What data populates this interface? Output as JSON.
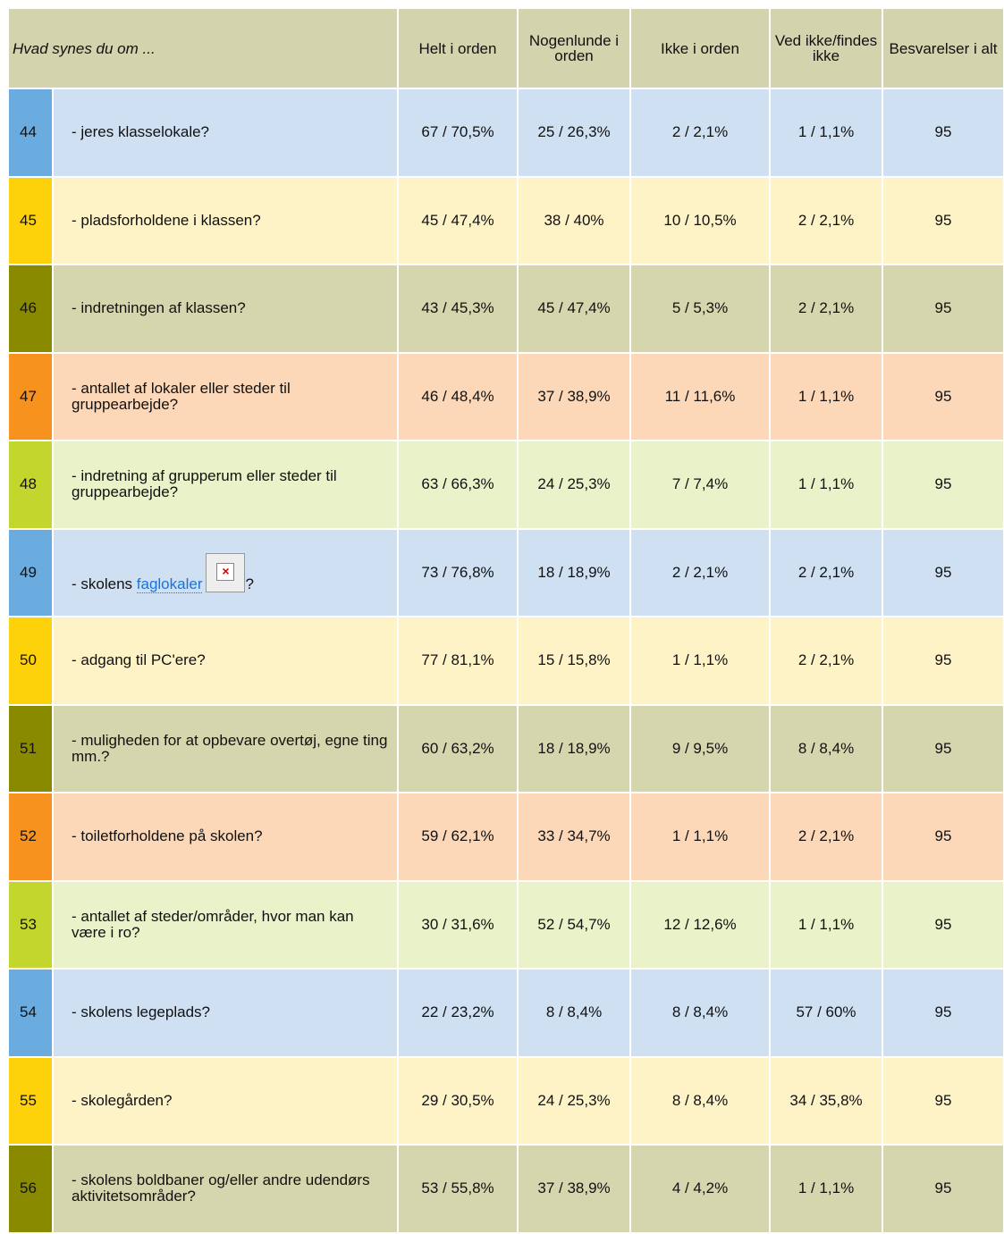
{
  "header": {
    "question": "Hvad synes du om ...",
    "columns": [
      "Helt i orden",
      "Nogenlunde i orden",
      "Ikke i orden",
      "Ved ikke/findes ikke",
      "Besvarelser i alt"
    ]
  },
  "rows": [
    {
      "number": 44,
      "question": "- jeres klasselokale?",
      "answers": [
        "67 / 70,5%",
        "25 / 26,3%",
        "2 / 2,1%",
        "1 / 1,1%"
      ],
      "total": 95
    },
    {
      "number": 45,
      "question": "- pladsforholdene i klassen?",
      "answers": [
        "45 / 47,4%",
        "38 / 40%",
        "10 / 10,5%",
        "2 / 2,1%"
      ],
      "total": 95
    },
    {
      "number": 46,
      "question": "- indretningen af klassen?",
      "answers": [
        "43 / 45,3%",
        "45 / 47,4%",
        "5 / 5,3%",
        "2 / 2,1%"
      ],
      "total": 95
    },
    {
      "number": 47,
      "question": "- antallet af lokaler eller steder til gruppearbejde?",
      "answers": [
        "46 / 48,4%",
        "37 / 38,9%",
        "11 / 11,6%",
        "1 / 1,1%"
      ],
      "total": 95
    },
    {
      "number": 48,
      "question": "- indretning af grupperum eller steder til gruppearbejde?",
      "answers": [
        "63 / 66,3%",
        "24 / 25,3%",
        "7 / 7,4%",
        "1 / 1,1%"
      ],
      "total": 95
    },
    {
      "number": 49,
      "question": "- skolens",
      "link": "faglokaler",
      "question_end": "?",
      "answers": [
        "73 / 76,8%",
        "18 / 18,9%",
        "2 / 2,1%",
        "2 / 2,1%"
      ],
      "total": 95
    },
    {
      "number": 50,
      "question": "- adgang til PC'ere?",
      "answers": [
        "77 / 81,1%",
        "15 / 15,8%",
        "1 / 1,1%",
        "2 / 2,1%"
      ],
      "total": 95
    },
    {
      "number": 51,
      "question": "- muligheden for at opbevare overtøj, egne ting mm.?",
      "answers": [
        "60 / 63,2%",
        "18 / 18,9%",
        "9 / 9,5%",
        "8 / 8,4%"
      ],
      "total": 95
    },
    {
      "number": 52,
      "question": "- toiletforholdene på skolen?",
      "answers": [
        "59 / 62,1%",
        "33 / 34,7%",
        "1 / 1,1%",
        "2 / 2,1%"
      ],
      "total": 95
    },
    {
      "number": 53,
      "question": "- antallet af steder/områder, hvor man kan være i ro?",
      "answers": [
        "30 / 31,6%",
        "52 / 54,7%",
        "12 / 12,6%",
        "1 / 1,1%"
      ],
      "total": 95
    },
    {
      "number": 54,
      "question": "- skolens legeplads?",
      "answers": [
        "22 / 23,2%",
        "8 / 8,4%",
        "8 / 8,4%",
        "57 / 60%"
      ],
      "total": 95
    },
    {
      "number": 55,
      "question": "- skolegården?",
      "answers": [
        "29 / 30,5%",
        "24 / 25,3%",
        "8 / 8,4%",
        "34 / 35,8%"
      ],
      "total": 95
    },
    {
      "number": 56,
      "question": "- skolens boldbaner og/eller andre udendørs aktivitetsområder?",
      "answers": [
        "53 / 55,8%",
        "37 / 38,9%",
        "4 / 4,2%",
        "1 / 1,1%"
      ],
      "total": 95
    }
  ]
}
